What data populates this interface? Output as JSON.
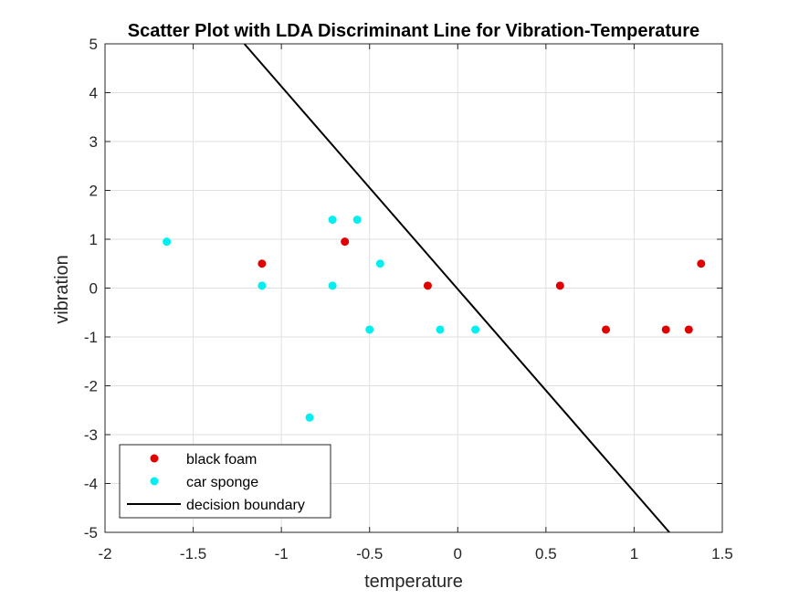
{
  "chart_data": {
    "type": "scatter",
    "title": "Scatter Plot with LDA Discriminant Line for Vibration-Temperature",
    "xlabel": "temperature",
    "ylabel": "vibration",
    "xlim": [
      -2,
      1.5
    ],
    "ylim": [
      -5,
      5
    ],
    "xticks": [
      "-2",
      "-1.5",
      "-1",
      "-0.5",
      "0",
      "0.5",
      "1",
      "1.5"
    ],
    "yticks": [
      "-5",
      "-4",
      "-3",
      "-2",
      "-1",
      "0",
      "1",
      "2",
      "3",
      "4",
      "5"
    ],
    "grid": true,
    "legend_position": "bottom-left",
    "series": [
      {
        "name": "black foam",
        "color": "#e00000",
        "points": [
          {
            "x": -1.11,
            "y": 0.5
          },
          {
            "x": -0.64,
            "y": 0.95
          },
          {
            "x": -0.17,
            "y": 0.05
          },
          {
            "x": 0.58,
            "y": 0.05
          },
          {
            "x": 0.84,
            "y": -0.85
          },
          {
            "x": 1.18,
            "y": -0.85
          },
          {
            "x": 1.31,
            "y": -0.85
          },
          {
            "x": 1.38,
            "y": 0.5
          }
        ]
      },
      {
        "name": "car sponge",
        "color": "#00f0f0",
        "points": [
          {
            "x": -1.65,
            "y": 0.95
          },
          {
            "x": -1.11,
            "y": 0.05
          },
          {
            "x": -0.71,
            "y": 1.4
          },
          {
            "x": -0.57,
            "y": 1.4
          },
          {
            "x": -0.71,
            "y": 0.05
          },
          {
            "x": -0.44,
            "y": 0.5
          },
          {
            "x": -0.5,
            "y": -0.85
          },
          {
            "x": -0.1,
            "y": -0.85
          },
          {
            "x": 0.1,
            "y": -0.85
          },
          {
            "x": -0.84,
            "y": -2.65
          }
        ]
      }
    ],
    "boundary": {
      "name": "decision boundary",
      "color": "#000000",
      "from": {
        "x": -1.21,
        "y": 5
      },
      "to": {
        "x": 1.2,
        "y": -5
      }
    }
  }
}
